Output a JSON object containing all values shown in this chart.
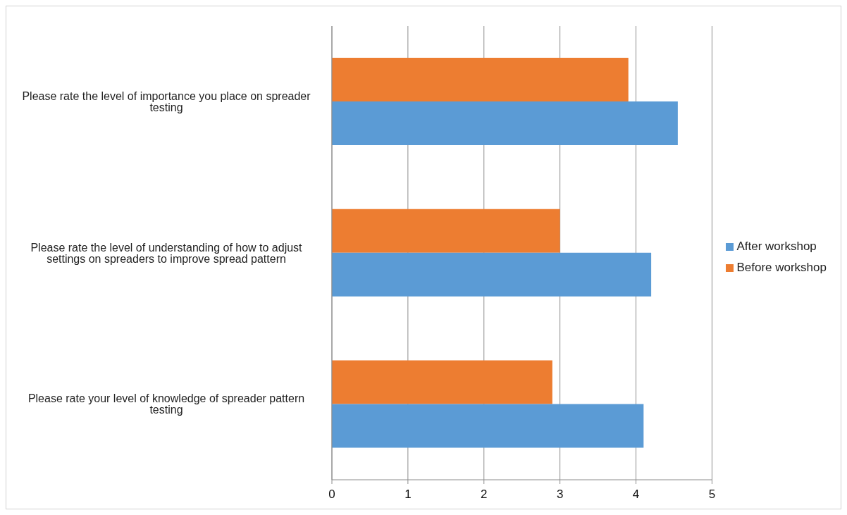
{
  "chart_data": {
    "type": "bar",
    "orientation": "horizontal",
    "categories": [
      "Please rate the level of importance you place on spreader testing",
      "Please rate the level of understanding of how to adjust settings on spreaders to improve spread pattern",
      "Please rate your level of knowledge of spreader pattern testing"
    ],
    "series": [
      {
        "name": "Before workshop",
        "color": "#ed7d31",
        "values": [
          3.9,
          3.0,
          2.9
        ]
      },
      {
        "name": "After workshop",
        "color": "#5b9bd5",
        "values": [
          4.55,
          4.2,
          4.1
        ]
      }
    ],
    "xlim": [
      0,
      5
    ],
    "xticks": [
      0,
      1,
      2,
      3,
      4,
      5
    ],
    "grid": "x",
    "legend": "right"
  }
}
